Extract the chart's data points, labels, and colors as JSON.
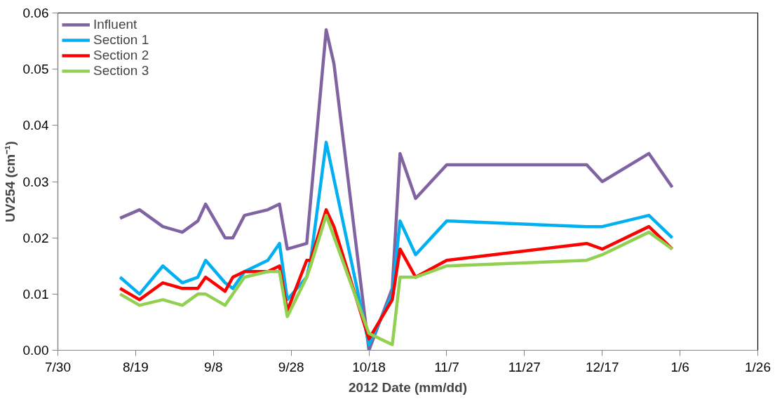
{
  "chart_data": {
    "type": "line",
    "xlabel": "2012 Date (mm/dd)",
    "ylabel": "UV254 (cm⁻¹)",
    "xlim": [
      "2012-07-30",
      "2013-01-26"
    ],
    "xticks": [
      {
        "value": "2012-07-30",
        "label": "7/30"
      },
      {
        "value": "2012-08-19",
        "label": "8/19"
      },
      {
        "value": "2012-09-08",
        "label": "9/8"
      },
      {
        "value": "2012-09-28",
        "label": "9/28"
      },
      {
        "value": "2012-10-18",
        "label": "10/18"
      },
      {
        "value": "2012-11-07",
        "label": "11/7"
      },
      {
        "value": "2012-11-27",
        "label": "11/27"
      },
      {
        "value": "2012-12-17",
        "label": "12/17"
      },
      {
        "value": "2013-01-06",
        "label": "1/6"
      },
      {
        "value": "2013-01-26",
        "label": "1/26"
      }
    ],
    "ylim": [
      0,
      0.06
    ],
    "yticks": [
      {
        "value": 0,
        "label": "0.00"
      },
      {
        "value": 0.01,
        "label": "0.01"
      },
      {
        "value": 0.02,
        "label": "0.02"
      },
      {
        "value": 0.03,
        "label": "0.03"
      },
      {
        "value": 0.04,
        "label": "0.04"
      },
      {
        "value": 0.05,
        "label": "0.05"
      },
      {
        "value": 0.06,
        "label": "0.06"
      }
    ],
    "grid": false,
    "legend": "top left",
    "marker": "none",
    "line_style": "solid",
    "series": [
      {
        "name": "Influent",
        "color": "#8064a2",
        "x": [
          "2012-08-15",
          "2012-08-20",
          "2012-08-26",
          "2012-08-31",
          "2012-09-04",
          "2012-09-06",
          "2012-09-11",
          "2012-09-13",
          "2012-09-16",
          "2012-09-22",
          "2012-09-25",
          "2012-09-27",
          "2012-10-02",
          "2012-10-07",
          "2012-10-09",
          "2012-10-18",
          "2012-10-24",
          "2012-10-26",
          "2012-10-30",
          "2012-11-07",
          "2012-12-13",
          "2012-12-17",
          "2012-12-29",
          "2013-01-04"
        ],
        "values": [
          0.0235,
          0.025,
          0.022,
          0.021,
          0.023,
          0.026,
          0.02,
          0.02,
          0.024,
          0.025,
          0.026,
          0.018,
          0.019,
          0.057,
          0.051,
          0.0,
          0.011,
          0.035,
          0.027,
          0.033,
          0.033,
          0.03,
          0.035,
          0.029
        ]
      },
      {
        "name": "Section 1",
        "color": "#00b0f0",
        "x": [
          "2012-08-15",
          "2012-08-20",
          "2012-08-26",
          "2012-08-31",
          "2012-09-04",
          "2012-09-06",
          "2012-09-11",
          "2012-09-13",
          "2012-09-16",
          "2012-09-22",
          "2012-09-25",
          "2012-09-27",
          "2012-10-02",
          "2012-10-03",
          "2012-10-07",
          "2012-10-18",
          "2012-10-24",
          "2012-10-26",
          "2012-10-30",
          "2012-11-07",
          "2012-12-13",
          "2012-12-17",
          "2012-12-29",
          "2013-01-04"
        ],
        "values": [
          0.013,
          0.01,
          0.015,
          0.012,
          0.013,
          0.016,
          0.012,
          0.011,
          0.014,
          0.016,
          0.019,
          0.009,
          0.013,
          0.016,
          0.037,
          0.001,
          0.01,
          0.023,
          0.017,
          0.023,
          0.022,
          0.022,
          0.024,
          0.02
        ]
      },
      {
        "name": "Section 2",
        "color": "#ff0000",
        "x": [
          "2012-08-15",
          "2012-08-20",
          "2012-08-26",
          "2012-08-31",
          "2012-09-04",
          "2012-09-06",
          "2012-09-11",
          "2012-09-13",
          "2012-09-16",
          "2012-09-22",
          "2012-09-25",
          "2012-09-27",
          "2012-10-02",
          "2012-10-03",
          "2012-10-07",
          "2012-10-09",
          "2012-10-18",
          "2012-10-24",
          "2012-10-26",
          "2012-10-30",
          "2012-11-07",
          "2012-12-13",
          "2012-12-17",
          "2012-12-29",
          "2013-01-04"
        ],
        "values": [
          0.011,
          0.009,
          0.012,
          0.011,
          0.011,
          0.013,
          0.0105,
          0.013,
          0.014,
          0.014,
          0.015,
          0.007,
          0.016,
          0.016,
          0.025,
          0.022,
          0.002,
          0.009,
          0.018,
          0.013,
          0.016,
          0.019,
          0.018,
          0.022,
          0.018
        ]
      },
      {
        "name": "Section 3",
        "color": "#92d050",
        "x": [
          "2012-08-15",
          "2012-08-20",
          "2012-08-26",
          "2012-08-31",
          "2012-09-04",
          "2012-09-06",
          "2012-09-11",
          "2012-09-13",
          "2012-09-16",
          "2012-09-22",
          "2012-09-25",
          "2012-09-27",
          "2012-10-02",
          "2012-10-03",
          "2012-10-07",
          "2012-10-18",
          "2012-10-24",
          "2012-10-26",
          "2012-10-30",
          "2012-11-07",
          "2012-12-13",
          "2012-12-17",
          "2012-12-29",
          "2013-01-04"
        ],
        "values": [
          0.01,
          0.008,
          0.009,
          0.008,
          0.01,
          0.01,
          0.008,
          0.01,
          0.013,
          0.014,
          0.014,
          0.006,
          0.013,
          0.015,
          0.024,
          0.003,
          0.001,
          0.013,
          0.013,
          0.015,
          0.016,
          0.017,
          0.021,
          0.018
        ]
      }
    ]
  }
}
